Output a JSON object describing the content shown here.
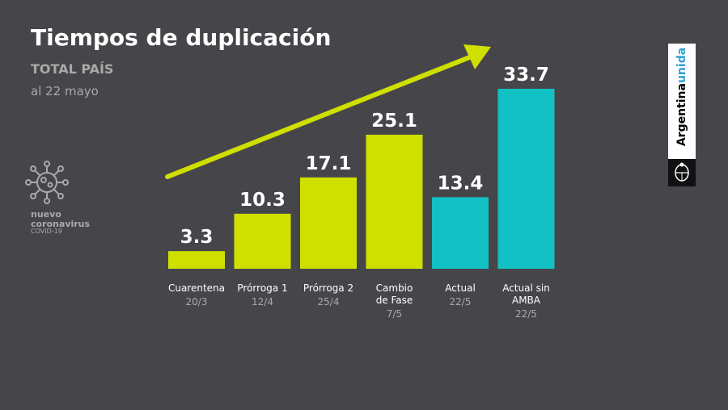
{
  "header": {
    "title": "Tiempos de duplicación",
    "subtitle": "TOTAL PAÍS",
    "date": "al 22 mayo"
  },
  "badge": {
    "line1": "nuevo",
    "line2": "coronavirus",
    "line3": "COVID-19",
    "icon": "virus-icon"
  },
  "brand": {
    "text_main": "Argentina",
    "text_accent": "unida",
    "accent_color": "#2f9fd6",
    "emblem_icon": "national-emblem-icon"
  },
  "chart_data": {
    "type": "bar",
    "categories": [
      [
        "Cuarentena"
      ],
      [
        "Prórroga 1"
      ],
      [
        "Prórroga 2"
      ],
      [
        "Cambio",
        "de Fase"
      ],
      [
        "Actual"
      ],
      [
        "Actual sin",
        "AMBA"
      ]
    ],
    "dates": [
      "20/3",
      "12/4",
      "25/4",
      "7/5",
      "22/5",
      "22/5"
    ],
    "values": [
      3.3,
      10.3,
      17.1,
      25.1,
      13.4,
      33.7
    ],
    "value_labels": [
      "3.3",
      "10.3",
      "17.1",
      "25.1",
      "13.4",
      "33.7"
    ],
    "bar_colors": [
      "#cfe000",
      "#cfe000",
      "#cfe000",
      "#cfe000",
      "#12c1c4",
      "#12c1c4"
    ],
    "trend_arrow_color": "#cfe000",
    "ylim": [
      0,
      33.7
    ],
    "grid": false,
    "legend": "none"
  }
}
